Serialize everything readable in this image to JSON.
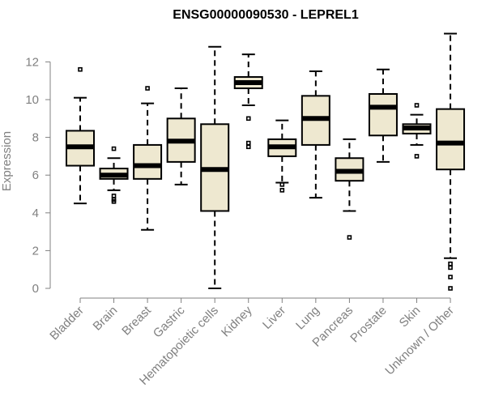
{
  "chart_data": {
    "type": "box",
    "title": "ENSG00000090530 - LEPREL1",
    "xlabel": "",
    "ylabel": "Expression",
    "ylim": [
      0,
      13.5
    ],
    "yticks": [
      0,
      2,
      4,
      6,
      8,
      10,
      12
    ],
    "categories": [
      "Bladder",
      "Brain",
      "Breast",
      "Gastric",
      "Hematopoietic cells",
      "Kidney",
      "Liver",
      "Lung",
      "Pancreas",
      "Prostate",
      "Skin",
      "Unknown / Other"
    ],
    "box_color": "#EEE8D0",
    "boxes": [
      {
        "label": "Bladder",
        "whisker_low": 4.5,
        "q1": 6.5,
        "median": 7.5,
        "q3": 8.35,
        "whisker_high": 10.1,
        "outliers": [
          11.6
        ]
      },
      {
        "label": "Brain",
        "whisker_low": 5.2,
        "q1": 5.8,
        "median": 6.0,
        "q3": 6.35,
        "whisker_high": 6.9,
        "outliers": [
          7.4,
          4.9,
          4.7,
          4.6
        ]
      },
      {
        "label": "Breast",
        "whisker_low": 3.1,
        "q1": 5.8,
        "median": 6.5,
        "q3": 7.6,
        "whisker_high": 9.8,
        "outliers": [
          10.6
        ]
      },
      {
        "label": "Gastric",
        "whisker_low": 5.5,
        "q1": 6.7,
        "median": 7.8,
        "q3": 9.0,
        "whisker_high": 10.6,
        "outliers": []
      },
      {
        "label": "Hematopoietic cells",
        "whisker_low": 0.0,
        "q1": 4.1,
        "median": 6.3,
        "q3": 8.7,
        "whisker_high": 12.8,
        "outliers": []
      },
      {
        "label": "Kidney",
        "whisker_low": 9.7,
        "q1": 10.6,
        "median": 10.9,
        "q3": 11.2,
        "whisker_high": 12.4,
        "outliers": [
          9.0,
          7.7,
          7.5
        ]
      },
      {
        "label": "Liver",
        "whisker_low": 5.6,
        "q1": 7.0,
        "median": 7.5,
        "q3": 7.9,
        "whisker_high": 8.9,
        "outliers": [
          5.5,
          5.2
        ]
      },
      {
        "label": "Lung",
        "whisker_low": 4.8,
        "q1": 7.6,
        "median": 9.0,
        "q3": 10.2,
        "whisker_high": 11.5,
        "outliers": []
      },
      {
        "label": "Pancreas",
        "whisker_low": 4.1,
        "q1": 5.7,
        "median": 6.2,
        "q3": 6.9,
        "whisker_high": 7.9,
        "outliers": [
          2.7
        ]
      },
      {
        "label": "Prostate",
        "whisker_low": 6.7,
        "q1": 8.1,
        "median": 9.6,
        "q3": 10.3,
        "whisker_high": 11.6,
        "outliers": []
      },
      {
        "label": "Skin",
        "whisker_low": 7.6,
        "q1": 8.2,
        "median": 8.5,
        "q3": 8.7,
        "whisker_high": 9.2,
        "outliers": [
          9.7,
          7.0
        ]
      },
      {
        "label": "Unknown / Other",
        "whisker_low": 1.6,
        "q1": 6.3,
        "median": 7.7,
        "q3": 9.5,
        "whisker_high": 13.5,
        "outliers": [
          1.3,
          1.1,
          0.6,
          0.0
        ]
      }
    ]
  }
}
